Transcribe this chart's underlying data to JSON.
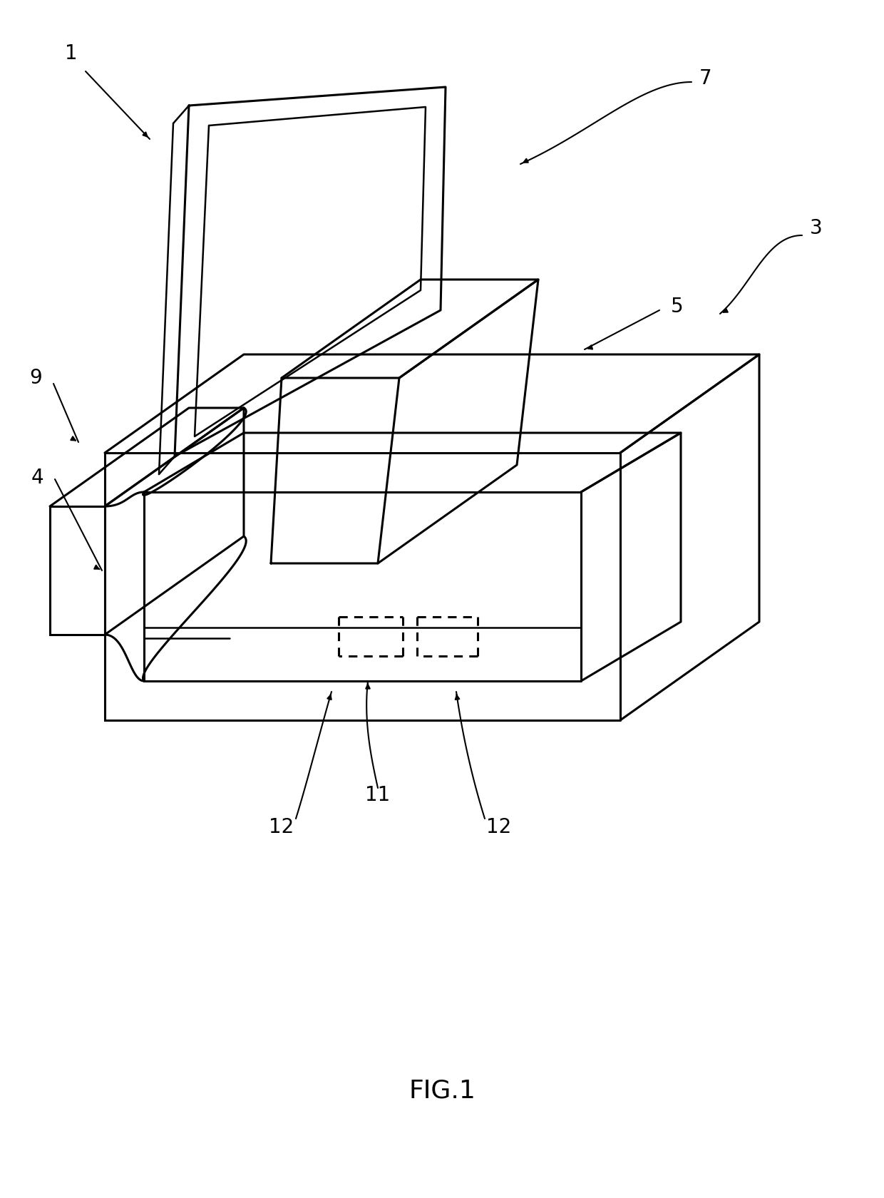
{
  "bg_color": "#ffffff",
  "line_color": "#000000",
  "lw_main": 2.2,
  "lw_thin": 1.8,
  "lw_leader": 1.5,
  "fig_width": 12.4,
  "fig_height": 16.8,
  "title_fontsize": 26,
  "label_fontsize": 20
}
